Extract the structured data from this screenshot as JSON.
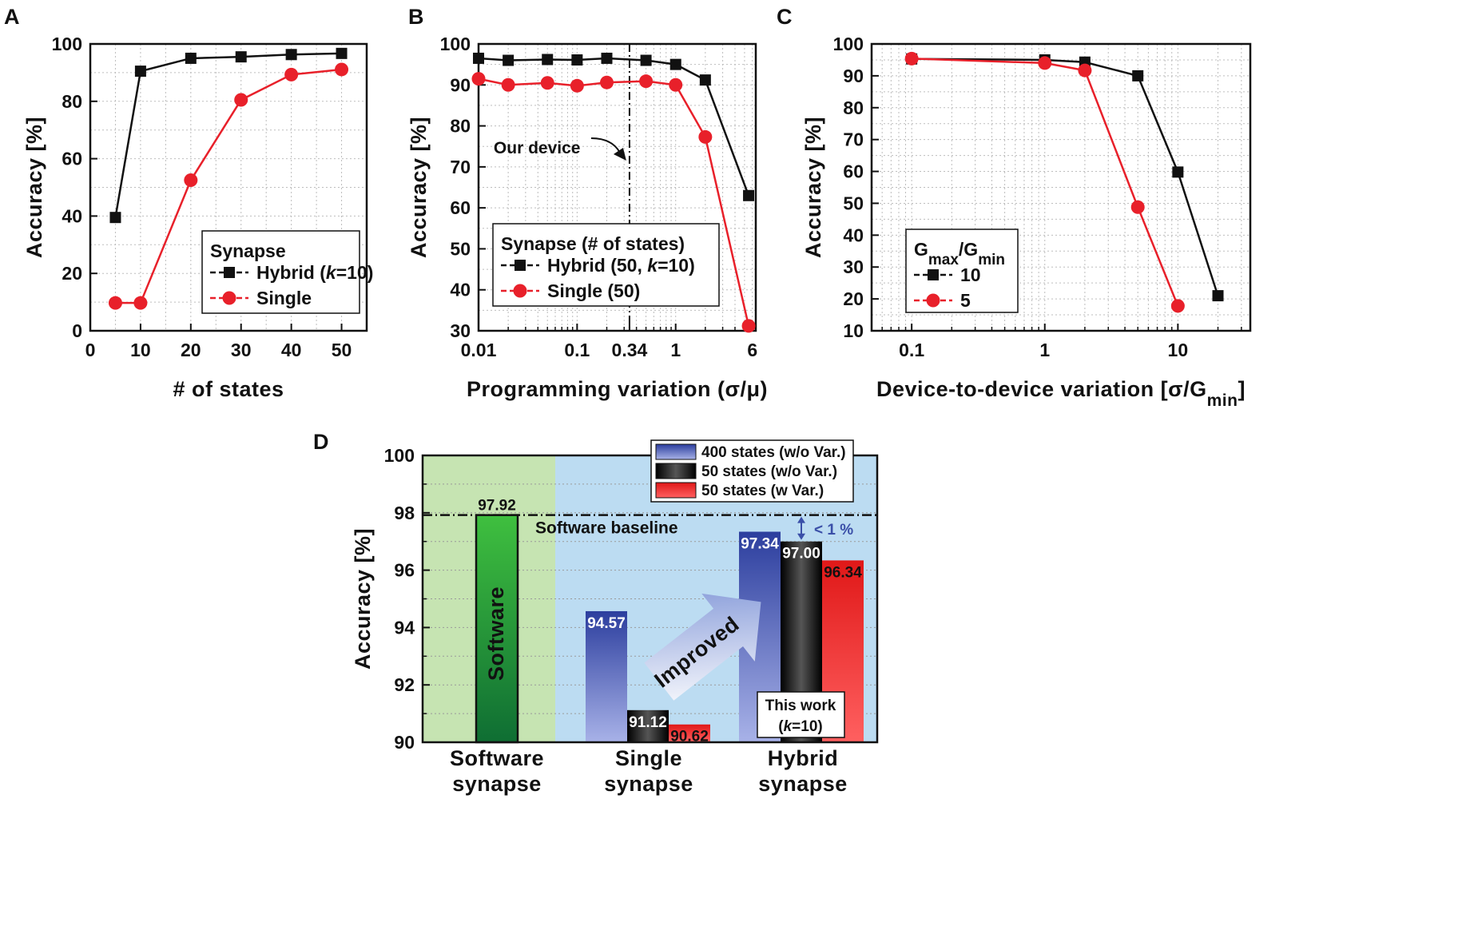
{
  "chart_data": [
    {
      "id": "A",
      "type": "line",
      "panel_label": "A",
      "xlabel": "# of states",
      "ylabel": "Accuracy [%]",
      "xlim": [
        0,
        55
      ],
      "ylim": [
        0,
        100
      ],
      "xticks": [
        0,
        10,
        20,
        30,
        40,
        50
      ],
      "xtick_labels": [
        "0",
        "10",
        "20",
        "30",
        "40",
        "50"
      ],
      "yticks": [
        0,
        20,
        40,
        60,
        80,
        100
      ],
      "ytick_labels": [
        "0",
        "20",
        "40",
        "60",
        "80",
        "100"
      ],
      "legend_title": "Synapse",
      "legend_position": "bottom-right",
      "series": [
        {
          "name": "Hybrid (k=10)",
          "label_parts": [
            "Hybrid (",
            "k",
            "=10)"
          ],
          "color": "#111111",
          "marker": "square",
          "x": [
            5,
            10,
            20,
            30,
            40,
            50
          ],
          "y": [
            39.5,
            90.5,
            95.0,
            95.5,
            96.3,
            96.7
          ]
        },
        {
          "name": "Single",
          "label_parts": [
            "Single"
          ],
          "color": "#e8202a",
          "marker": "circle",
          "x": [
            5,
            10,
            20,
            30,
            40,
            50
          ],
          "y": [
            9.7,
            9.7,
            52.5,
            80.5,
            89.3,
            91.1
          ]
        }
      ]
    },
    {
      "id": "B",
      "type": "line",
      "panel_label": "B",
      "xlabel": "Programming variation (σ/μ)",
      "ylabel": "Accuracy [%]",
      "xscale": "log",
      "xlim": [
        0.01,
        6.5
      ],
      "ylim": [
        30,
        100
      ],
      "xticks": [
        0.01,
        0.1,
        0.34,
        1,
        6
      ],
      "xtick_labels": [
        "0.01",
        "0.1",
        "0.34",
        "1",
        "6"
      ],
      "yticks": [
        30,
        40,
        50,
        60,
        70,
        80,
        90,
        100
      ],
      "ytick_labels": [
        "30",
        "40",
        "50",
        "60",
        "70",
        "80",
        "90",
        "100"
      ],
      "legend_title": "Synapse (# of states)",
      "legend_position": "bottom-center",
      "annotation": {
        "text": "Our device",
        "x": 0.34
      },
      "series": [
        {
          "name": "Hybrid (50, k=10)",
          "label_parts": [
            "Hybrid (50, ",
            "k",
            "=10)"
          ],
          "color": "#111111",
          "marker": "square",
          "x": [
            0.01,
            0.02,
            0.05,
            0.1,
            0.2,
            0.5,
            1,
            2,
            5.5
          ],
          "y": [
            96.5,
            96.0,
            96.2,
            96.1,
            96.5,
            96.0,
            95.0,
            91.2,
            63.0
          ]
        },
        {
          "name": "Single (50)",
          "label_parts": [
            "Single (50)"
          ],
          "color": "#e8202a",
          "marker": "circle",
          "x": [
            0.01,
            0.02,
            0.05,
            0.1,
            0.2,
            0.5,
            1,
            2,
            5.5
          ],
          "y": [
            91.5,
            90.0,
            90.5,
            89.8,
            90.6,
            90.9,
            90.0,
            77.3,
            31.2
          ]
        }
      ]
    },
    {
      "id": "C",
      "type": "line",
      "panel_label": "C",
      "xlabel": "Device-to-device variation [σ/G",
      "xlabel_sub": "min",
      "xlabel_end": "]",
      "ylabel": "Accuracy [%]",
      "xscale": "log",
      "xlim": [
        0.05,
        35
      ],
      "ylim": [
        10,
        100
      ],
      "xticks": [
        0.1,
        1,
        10
      ],
      "xtick_labels": [
        "0.1",
        "1",
        "10"
      ],
      "yticks": [
        10,
        20,
        30,
        40,
        50,
        60,
        70,
        80,
        90,
        100
      ],
      "ytick_labels": [
        "10",
        "20",
        "30",
        "40",
        "50",
        "60",
        "70",
        "80",
        "90",
        "100"
      ],
      "legend_title": "G",
      "legend_title_sub1": "max",
      "legend_title_mid": "/G",
      "legend_title_sub2": "min",
      "legend_position": "bottom-left",
      "series": [
        {
          "name": "10",
          "label_parts": [
            "10"
          ],
          "color": "#111111",
          "marker": "square",
          "x": [
            0.1,
            1,
            2,
            5,
            10,
            20
          ],
          "y": [
            95.3,
            95.0,
            94.3,
            90.0,
            59.8,
            21.0
          ]
        },
        {
          "name": "5",
          "label_parts": [
            "5"
          ],
          "color": "#e8202a",
          "marker": "circle",
          "x": [
            0.1,
            1,
            2,
            10,
            5
          ],
          "y": [
            95.4,
            94.0,
            91.7,
            17.8,
            48.8
          ]
        }
      ]
    },
    {
      "id": "D",
      "type": "bar",
      "panel_label": "D",
      "ylabel": "Accuracy [%]",
      "ylim": [
        90,
        100
      ],
      "yticks": [
        90,
        92,
        94,
        96,
        98,
        100
      ],
      "ytick_labels": [
        "90",
        "92",
        "94",
        "96",
        "98",
        "100"
      ],
      "categories": [
        [
          "Software",
          "synapse"
        ],
        [
          "Single",
          "synapse"
        ],
        [
          "Hybrid",
          "synapse"
        ]
      ],
      "software": {
        "value": 97.92,
        "label": "97.92",
        "inner_text": "Software",
        "color": "#2fa04a"
      },
      "series": [
        {
          "name": "400 states (w/o Var.)",
          "color": "#3a4fa8",
          "values": [
            null,
            94.57,
            97.34
          ],
          "labels": [
            "",
            "94.57",
            "97.34"
          ]
        },
        {
          "name": "50 states (w/o Var.)",
          "color": "#111111",
          "values": [
            null,
            91.12,
            97.0
          ],
          "labels": [
            "",
            "91.12",
            "97.00"
          ]
        },
        {
          "name": "50 states (w Var.)",
          "color": "#e8202a",
          "values": [
            null,
            90.62,
            96.34
          ],
          "labels": [
            "",
            "90.62",
            "96.34"
          ]
        }
      ],
      "baseline": {
        "value": 97.92,
        "label": "Software baseline"
      },
      "gap_label": "< 1 %",
      "arrow_label": "Improved",
      "this_work": [
        "This work",
        "(k=10)"
      ],
      "this_work_parts": [
        "(",
        "k",
        "=10)"
      ],
      "legend_position": "top-right"
    }
  ]
}
